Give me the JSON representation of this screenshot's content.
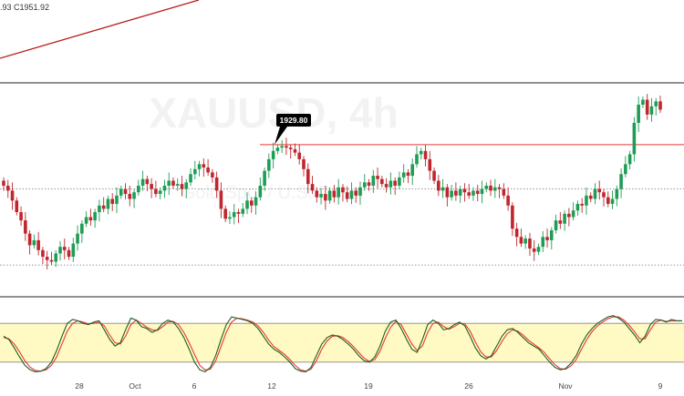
{
  "header": {
    "ohlc_fragment": ".93  C1951.92"
  },
  "watermark": {
    "symbol": "XAUUSD, 4h",
    "subtitle": "Gold Spot / U.S. Dollar"
  },
  "colors": {
    "up": "#26a69a",
    "down": "#ef5350",
    "up_body": "#1f9d55",
    "down_body": "#c0262d",
    "trendline": "#b71c1c",
    "resistance": "#e53935",
    "stoch_k": "#1b5e20",
    "stoch_d": "#e53935",
    "stoch_band": "#fff9c4",
    "callout_bg": "#000000"
  },
  "chart_data": [
    {
      "type": "candlestick",
      "symbol": "XAUUSD",
      "timeframe": "4h",
      "x_tick_labels": [
        "28",
        "Oct",
        "6",
        "12",
        "19",
        "26",
        "Nov",
        "9"
      ],
      "annotations": [
        {
          "type": "callout",
          "label": "1929.80",
          "value": 1929.8
        },
        {
          "type": "horizontal_line",
          "name": "resistance",
          "value": 1929.8
        },
        {
          "type": "horizontal_line",
          "name": "support-upper",
          "style": "dotted",
          "value": 1903
        },
        {
          "type": "horizontal_line",
          "name": "support-lower",
          "style": "dotted",
          "value": 1857
        }
      ],
      "candles_close": [
        1905,
        1902,
        1896,
        1889,
        1884,
        1876,
        1869,
        1872,
        1866,
        1862,
        1860,
        1859,
        1864,
        1868,
        1866,
        1862,
        1870,
        1876,
        1882,
        1886,
        1884,
        1889,
        1893,
        1891,
        1897,
        1894,
        1899,
        1903,
        1900,
        1897,
        1901,
        1905,
        1909,
        1906,
        1903,
        1900,
        1902,
        1905,
        1908,
        1905,
        1906,
        1903,
        1907,
        1912,
        1915,
        1918,
        1916,
        1913,
        1910,
        1902,
        1891,
        1885,
        1886,
        1889,
        1888,
        1891,
        1896,
        1893,
        1898,
        1905,
        1914,
        1921,
        1926,
        1928,
        1929,
        1928,
        1927,
        1925,
        1921,
        1915,
        1906,
        1902,
        1898,
        1900,
        1896,
        1902,
        1898,
        1904,
        1901,
        1897,
        1902,
        1899,
        1904,
        1907,
        1905,
        1911,
        1909,
        1906,
        1904,
        1908,
        1905,
        1910,
        1913,
        1911,
        1918,
        1924,
        1926,
        1921,
        1914,
        1908,
        1902,
        1904,
        1898,
        1902,
        1899,
        1903,
        1901,
        1899,
        1902,
        1900,
        1903,
        1905,
        1902,
        1904,
        1903,
        1899,
        1893,
        1879,
        1874,
        1870,
        1873,
        1867,
        1865,
        1868,
        1874,
        1872,
        1878,
        1884,
        1882,
        1888,
        1886,
        1890,
        1894,
        1893,
        1899,
        1897,
        1903,
        1901,
        1898,
        1894,
        1897,
        1903,
        1912,
        1918,
        1924,
        1943,
        1954,
        1957,
        1948,
        1953,
        1956,
        1951
      ],
      "annotation_text_values": [
        "1929.80"
      ]
    },
    {
      "type": "line",
      "name": "stochastic-oscillator",
      "ylim": [
        0,
        100
      ],
      "band": [
        20,
        80
      ],
      "series": [
        {
          "key": "k",
          "values": [
            60,
            55,
            42,
            28,
            15,
            8,
            5,
            6,
            10,
            20,
            38,
            60,
            80,
            86,
            84,
            80,
            78,
            82,
            84,
            70,
            55,
            45,
            50,
            70,
            88,
            85,
            75,
            72,
            66,
            70,
            80,
            85,
            82,
            72,
            58,
            40,
            20,
            8,
            5,
            12,
            30,
            55,
            78,
            90,
            88,
            86,
            84,
            80,
            72,
            60,
            48,
            40,
            35,
            28,
            20,
            10,
            6,
            5,
            12,
            30,
            48,
            58,
            62,
            60,
            55,
            48,
            40,
            30,
            22,
            20,
            28,
            45,
            68,
            82,
            85,
            72,
            55,
            40,
            35,
            55,
            78,
            85,
            80,
            70,
            72,
            78,
            82,
            76,
            60,
            42,
            30,
            25,
            30,
            45,
            60,
            70,
            72,
            66,
            58,
            50,
            45,
            40,
            30,
            20,
            12,
            8,
            10,
            18,
            30,
            48,
            62,
            72,
            80,
            85,
            90,
            92,
            88,
            82,
            72,
            62,
            50,
            60,
            78,
            86,
            85,
            82,
            86,
            84,
            84
          ]
        },
        {
          "key": "d",
          "values": [
            58,
            56,
            48,
            36,
            22,
            12,
            7,
            6,
            8,
            15,
            28,
            48,
            68,
            80,
            84,
            82,
            79,
            80,
            82,
            76,
            62,
            50,
            48,
            60,
            78,
            85,
            80,
            74,
            70,
            69,
            75,
            82,
            83,
            78,
            66,
            50,
            32,
            15,
            8,
            9,
            22,
            44,
            66,
            82,
            88,
            87,
            85,
            82,
            76,
            66,
            54,
            44,
            38,
            32,
            24,
            15,
            8,
            6,
            9,
            22,
            40,
            53,
            60,
            61,
            58,
            52,
            44,
            35,
            26,
            21,
            24,
            37,
            57,
            74,
            83,
            78,
            63,
            48,
            38,
            45,
            66,
            80,
            82,
            75,
            71,
            75,
            80,
            79,
            68,
            51,
            36,
            28,
            28,
            38,
            52,
            64,
            70,
            68,
            62,
            54,
            48,
            42,
            35,
            25,
            16,
            10,
            9,
            14,
            24,
            40,
            55,
            67,
            76,
            82,
            87,
            90,
            90,
            85,
            77,
            67,
            56,
            56,
            70,
            82,
            85,
            83,
            84,
            84,
            84
          ]
        }
      ]
    }
  ]
}
